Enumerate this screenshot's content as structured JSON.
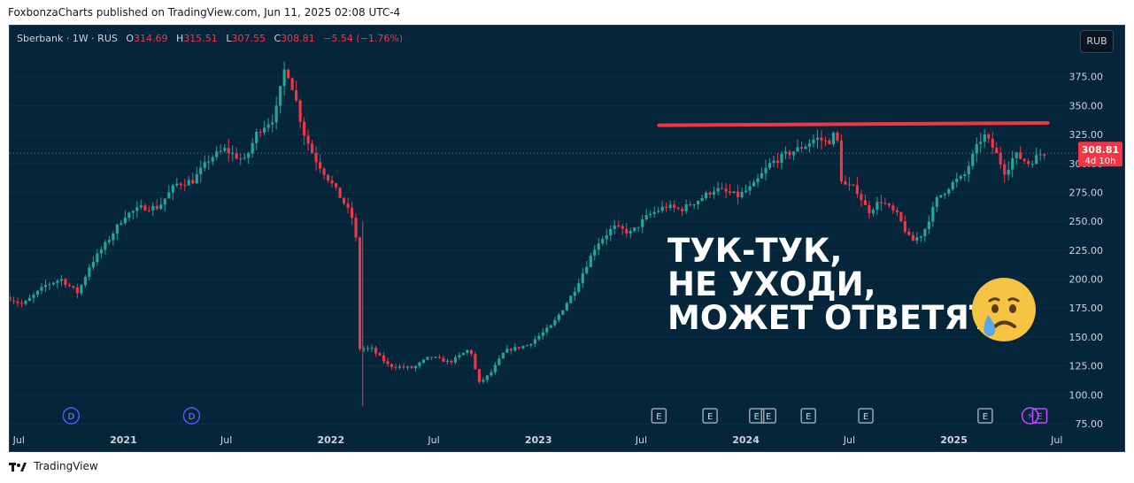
{
  "header": {
    "publisher": "FoxbonzaCharts published on TradingView.com, Jun 11, 2025 02:08 UTC-4"
  },
  "legend": {
    "symbol": "Sberbank · 1W · RUS",
    "o_label": "O",
    "o_value": "314.69",
    "h_label": "H",
    "h_value": "315.51",
    "l_label": "L",
    "l_value": "307.55",
    "c_label": "C",
    "c_value": "308.81",
    "change": "−5.54 (−1.76%)"
  },
  "currency_button": "RUB",
  "price_tag": {
    "price": "308.81",
    "countdown": "4d 10h",
    "color": "#f23645"
  },
  "headline": "ТУК-ТУК,\nНЕ УХОДИ,\nМОЖЕТ ОТВЕТЯТ",
  "emoji": "crying-face-icon",
  "footer": {
    "brand": "TradingView",
    "logo": "tradingview-logo-icon"
  },
  "colors": {
    "background": "#05253a",
    "up": "#26a69a",
    "down": "#f23645",
    "resistance": "#f23645",
    "text": "#d1d4dc"
  },
  "chart_data": {
    "type": "candlestick",
    "symbol": "Sberbank",
    "interval": "1W",
    "currency": "RUB",
    "ylim": [
      75,
      400
    ],
    "y_ticks": [
      "75.00",
      "100.00",
      "125.00",
      "150.00",
      "175.00",
      "200.00",
      "225.00",
      "250.00",
      "275.00",
      "300.00",
      "325.00",
      "350.00",
      "375.00"
    ],
    "x_ticks": [
      {
        "label": "Jul",
        "bold": false
      },
      {
        "label": "2021",
        "bold": true
      },
      {
        "label": "Jul",
        "bold": false
      },
      {
        "label": "2022",
        "bold": true
      },
      {
        "label": "Jul",
        "bold": false
      },
      {
        "label": "2023",
        "bold": true
      },
      {
        "label": "Jul",
        "bold": false
      },
      {
        "label": "2024",
        "bold": true
      },
      {
        "label": "Jul",
        "bold": false
      },
      {
        "label": "2025",
        "bold": true
      },
      {
        "label": "Jul",
        "bold": false
      }
    ],
    "x_range": [
      "2020-06-15",
      "2025-07-20"
    ],
    "tick_dates": [
      "2020-07-01",
      "2021-01-01",
      "2021-07-01",
      "2022-01-01",
      "2022-07-01",
      "2023-01-01",
      "2023-07-01",
      "2024-01-01",
      "2024-07-01",
      "2025-01-01",
      "2025-07-01"
    ],
    "current_price": 308.81,
    "resistance_line": {
      "start_date": "2023-08-01",
      "start_value": 333,
      "end_date": "2025-06-15",
      "end_value": 335
    },
    "events": [
      {
        "type": "D",
        "date": "2020-10-01"
      },
      {
        "type": "D",
        "date": "2021-05-01"
      },
      {
        "type": "E",
        "date": "2023-08-01"
      },
      {
        "type": "E",
        "date": "2023-10-30"
      },
      {
        "type": "E",
        "date": "2024-01-20"
      },
      {
        "type": "E",
        "date": "2024-02-10"
      },
      {
        "type": "E",
        "date": "2024-04-20"
      },
      {
        "type": "E",
        "date": "2024-07-30"
      },
      {
        "type": "E",
        "date": "2025-02-25"
      },
      {
        "type": "S",
        "date": "2025-05-15"
      },
      {
        "type": "E",
        "date": "2025-06-01"
      }
    ],
    "path": [
      [
        "2020-06-15",
        185
      ],
      [
        "2020-07-15",
        178
      ],
      [
        "2020-08-25",
        195
      ],
      [
        "2020-09-20",
        200
      ],
      [
        "2020-10-20",
        188
      ],
      [
        "2020-11-10",
        212
      ],
      [
        "2020-12-10",
        232
      ],
      [
        "2021-01-10",
        255
      ],
      [
        "2021-02-10",
        262
      ],
      [
        "2021-03-10",
        262
      ],
      [
        "2021-04-10",
        282
      ],
      [
        "2021-05-10",
        285
      ],
      [
        "2021-06-10",
        305
      ],
      [
        "2021-07-05",
        312
      ],
      [
        "2021-08-10",
        302
      ],
      [
        "2021-09-01",
        328
      ],
      [
        "2021-10-01",
        340
      ],
      [
        "2021-10-20",
        385
      ],
      [
        "2021-11-05",
        360
      ],
      [
        "2021-11-20",
        328
      ],
      [
        "2021-12-10",
        305
      ],
      [
        "2022-01-10",
        282
      ],
      [
        "2022-02-01",
        265
      ],
      [
        "2022-02-20",
        248
      ],
      [
        "2022-02-28",
        140
      ],
      [
        "2022-03-20",
        140
      ],
      [
        "2022-04-20",
        125
      ],
      [
        "2022-06-01",
        123
      ],
      [
        "2022-07-01",
        133
      ],
      [
        "2022-08-05",
        128
      ],
      [
        "2022-09-10",
        140
      ],
      [
        "2022-09-25",
        110
      ],
      [
        "2022-10-15",
        118
      ],
      [
        "2022-11-10",
        138
      ],
      [
        "2022-12-20",
        143
      ],
      [
        "2023-02-01",
        160
      ],
      [
        "2023-03-10",
        188
      ],
      [
        "2023-04-20",
        230
      ],
      [
        "2023-05-20",
        245
      ],
      [
        "2023-06-20",
        240
      ],
      [
        "2023-07-20",
        255
      ],
      [
        "2023-08-20",
        263
      ],
      [
        "2023-09-15",
        260
      ],
      [
        "2023-10-15",
        268
      ],
      [
        "2023-11-15",
        278
      ],
      [
        "2023-12-25",
        272
      ],
      [
        "2024-01-20",
        280
      ],
      [
        "2024-02-20",
        300
      ],
      [
        "2024-03-20",
        308
      ],
      [
        "2024-04-20",
        315
      ],
      [
        "2024-05-10",
        322
      ],
      [
        "2024-06-01",
        318
      ],
      [
        "2024-06-15",
        328
      ],
      [
        "2024-06-25",
        282
      ],
      [
        "2024-07-20",
        278
      ],
      [
        "2024-08-10",
        258
      ],
      [
        "2024-09-01",
        268
      ],
      [
        "2024-10-01",
        255
      ],
      [
        "2024-10-25",
        232
      ],
      [
        "2024-11-15",
        240
      ],
      [
        "2024-12-10",
        270
      ],
      [
        "2025-01-10",
        285
      ],
      [
        "2025-01-25",
        288
      ],
      [
        "2025-02-15",
        312
      ],
      [
        "2025-03-01",
        325
      ],
      [
        "2025-03-20",
        312
      ],
      [
        "2025-04-08",
        292
      ],
      [
        "2025-04-25",
        308
      ],
      [
        "2025-05-20",
        300
      ],
      [
        "2025-06-10",
        308.81
      ]
    ]
  }
}
